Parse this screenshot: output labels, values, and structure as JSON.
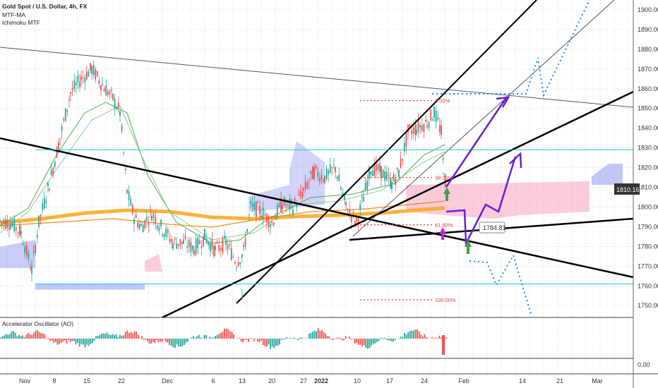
{
  "window": {
    "title": "Gold Spot / U.S. Dollar, 4h, FX"
  },
  "indicators": [
    "MTF-MA",
    "Ichimoku MTF"
  ],
  "oscillator": {
    "label": "Accelerator Oscillator (AO)",
    "zero_label": "0.00"
  },
  "colors": {
    "up": "#26a69a",
    "down": "#ef5350",
    "bg_grid": "#cfd8e3",
    "cloud_blue": "#7b83eb",
    "cloud_pink": "#f48fb1",
    "ma_orange": "#f9a825",
    "ma_green": "#43a047",
    "cyan": "#26c6da",
    "fib": "#e53935",
    "purple": "#6a1fd0",
    "dotted_blue": "#1e88e5"
  },
  "price_label": "1810.16",
  "annotation_label": "1784.81",
  "chart_data": {
    "type": "candlestick",
    "title": "Gold Spot / U.S. Dollar, 4h, FX",
    "ylim": [
      1744,
      1905
    ],
    "y_ticks": [
      "1900.00",
      "1890.00",
      "1880.00",
      "1870.00",
      "1860.00",
      "1850.00",
      "1840.00",
      "1830.00",
      "1820.00",
      "1810.00",
      "1800.00",
      "1790.00",
      "1780.00",
      "1770.00",
      "1760.00",
      "1750.00"
    ],
    "x_ticks": [
      "Nov",
      "8",
      "15",
      "22",
      "Dec",
      "6",
      "13",
      "20",
      "27",
      "2022",
      "10",
      "17",
      "24",
      "Feb",
      "14",
      "21",
      "Mar"
    ],
    "x_ticks_bold": [
      "2022"
    ],
    "fib_levels": [
      {
        "label": "0.00%",
        "price": 1854
      },
      {
        "label": "38.20%",
        "price": 1815
      },
      {
        "label": "61.80%",
        "price": 1791
      },
      {
        "label": "100.00%",
        "price": 1753
      }
    ],
    "horizontal_levels": [
      1829,
      1761
    ],
    "current_price": 1810.16,
    "annotation_price": 1784.81,
    "grid": true
  }
}
